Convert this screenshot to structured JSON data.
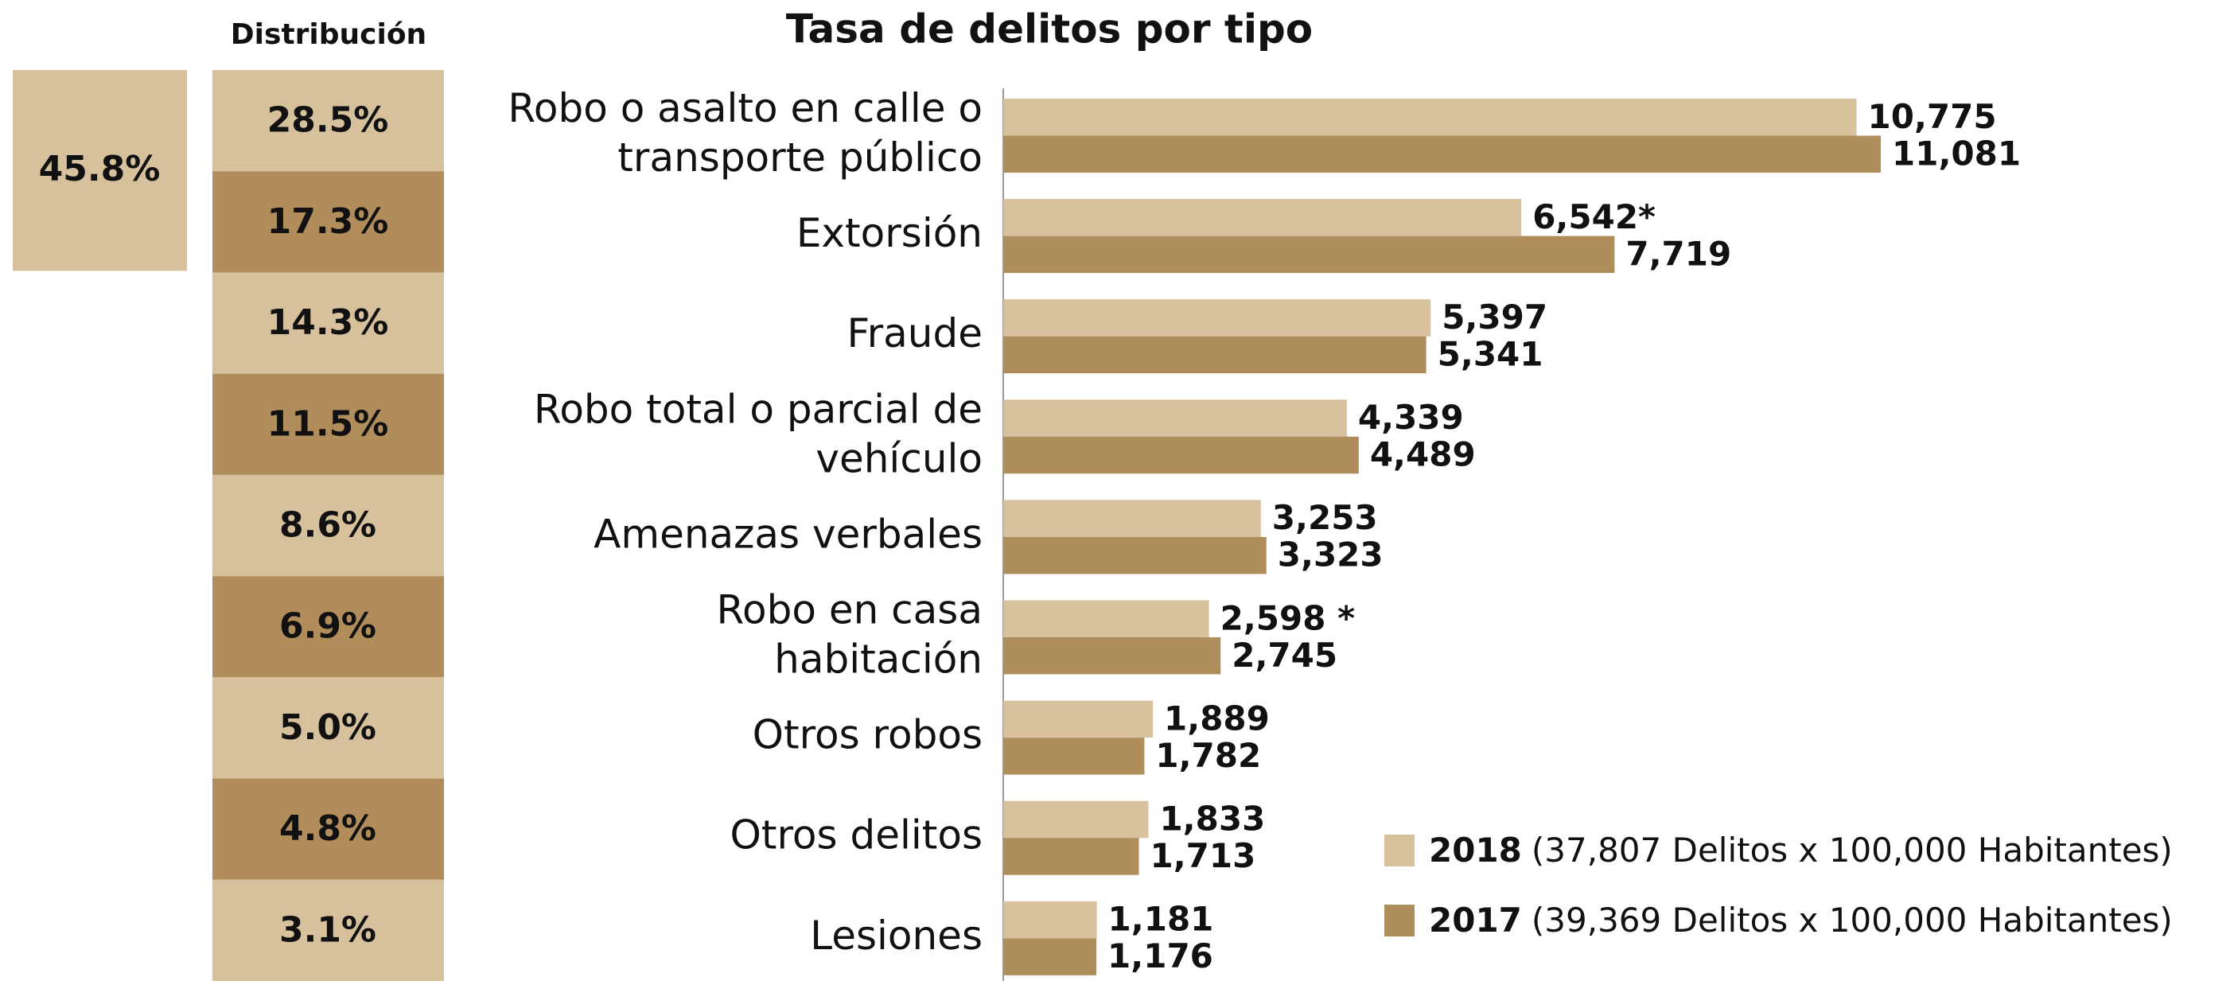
{
  "chart_data": {
    "type": "bar",
    "orientation": "horizontal",
    "title": "Tasa de delitos por tipo",
    "categories": [
      [
        "Robo o asalto en calle o",
        "transporte público"
      ],
      [
        "Extorsión"
      ],
      [
        "Fraude"
      ],
      [
        "Robo total o parcial de",
        "vehículo"
      ],
      [
        "Amenazas verbales"
      ],
      [
        "Robo en casa",
        "habitación"
      ],
      [
        "Otros robos"
      ],
      [
        "Otros delitos"
      ],
      [
        "Lesiones"
      ]
    ],
    "series": [
      {
        "name": "2018",
        "description": "(37,807 Delitos x 100,000 Habitantes)",
        "color": "#d7c29d",
        "values": [
          10775,
          6542,
          5397,
          4339,
          3253,
          2598,
          1889,
          1833,
          1181
        ],
        "value_labels": [
          "10,775",
          "6,542*",
          "5,397",
          "4,339",
          "3,253",
          "2,598 *",
          "1,889",
          "1,833",
          "1,181"
        ]
      },
      {
        "name": "2017",
        "description": "(39,369 Delitos x 100,000 Habitantes)",
        "color": "#b08e5c",
        "values": [
          11081,
          7719,
          5341,
          4489,
          3323,
          2745,
          1782,
          1713,
          1176
        ],
        "value_labels": [
          "11,081",
          "7,719",
          "5,341",
          "4,489",
          "3,323",
          "2,745",
          "1,782",
          "1,713",
          "1,176"
        ]
      }
    ],
    "distribution": {
      "title": "Distribución",
      "values": [
        28.5,
        17.3,
        14.3,
        11.5,
        8.6,
        6.9,
        5.0,
        4.8,
        3.1
      ],
      "value_labels": [
        "28.5%",
        "17.3%",
        "14.3%",
        "11.5%",
        "8.6%",
        "6.9%",
        "5.0%",
        "4.8%",
        "3.1%"
      ],
      "colors": [
        "#d6c19c",
        "#b08d5b"
      ],
      "group_total": 45.8,
      "group_total_label": "45.8%"
    }
  }
}
